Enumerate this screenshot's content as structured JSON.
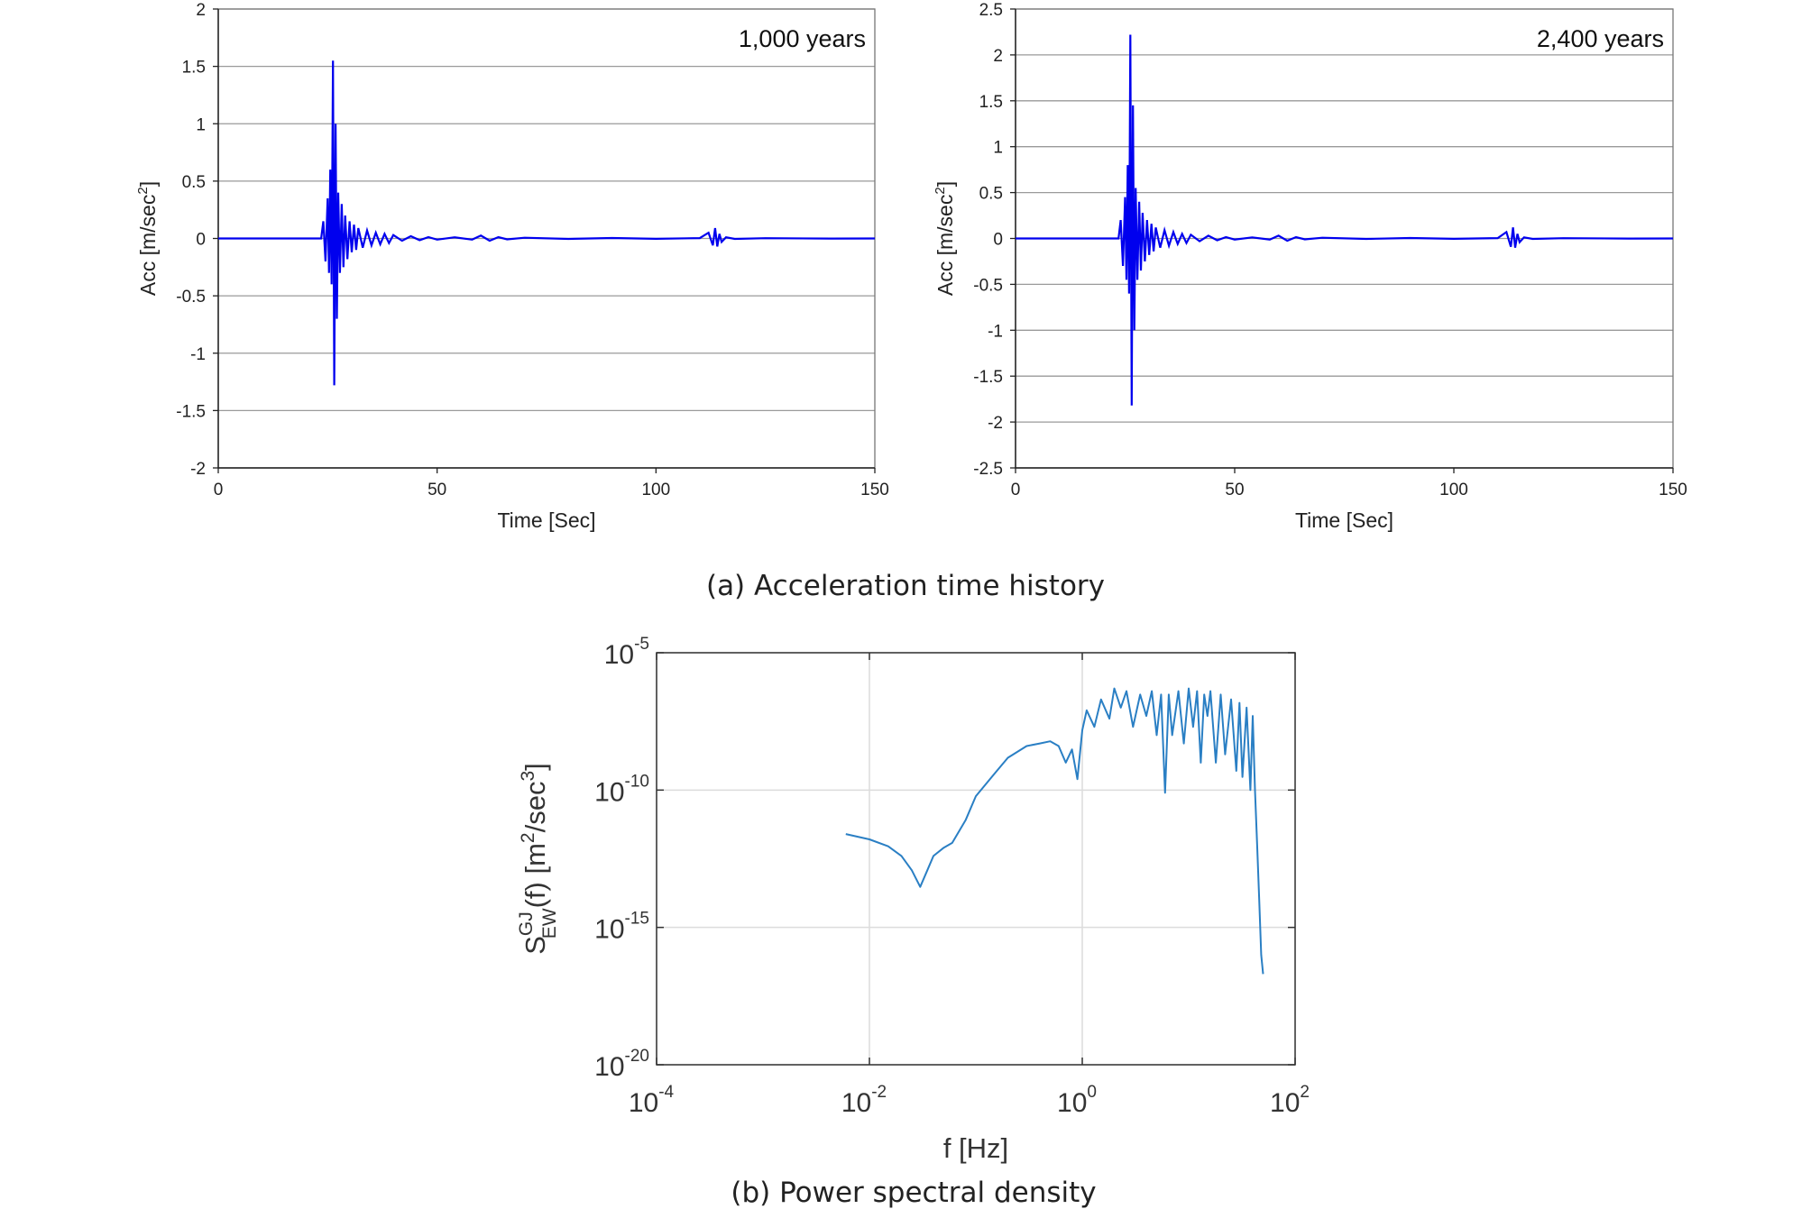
{
  "chart_data": [
    {
      "type": "line",
      "annotation": "1,000 years",
      "xlabel": "Time [Sec]",
      "ylabel": "Acc [m/sec",
      "ylabel_sup": "2",
      "ylabel_end": "]",
      "xlim": [
        0,
        150
      ],
      "ylim": [
        -2,
        2
      ],
      "xticks": [
        0,
        50,
        100,
        150
      ],
      "yticks": [
        -2,
        -1.5,
        -1,
        -0.5,
        0,
        0.5,
        1,
        1.5,
        2
      ],
      "grid": "horizontal",
      "color": "#0000ee",
      "series": [
        {
          "x": [
            0,
            23.5,
            24,
            24.5,
            25,
            25.3,
            25.6,
            25.9,
            26.2,
            26.5,
            26.8,
            27.1,
            27.4,
            27.8,
            28.2,
            28.6,
            29,
            29.5,
            30,
            30.5,
            31,
            31.5,
            32,
            33,
            34,
            35,
            36,
            37,
            38,
            39,
            40,
            42,
            44,
            46,
            48,
            50,
            54,
            58,
            60,
            62,
            64,
            66,
            70,
            80,
            90,
            100,
            110,
            112,
            113,
            113.5,
            114,
            114.5,
            115,
            116,
            118,
            125,
            140,
            150
          ],
          "y": [
            0,
            0,
            0.15,
            -0.2,
            0.35,
            -0.3,
            0.6,
            -0.4,
            1.55,
            -1.28,
            1.0,
            -0.7,
            0.4,
            -0.3,
            0.3,
            -0.25,
            0.2,
            -0.18,
            0.15,
            -0.12,
            0.12,
            -0.1,
            0.09,
            -0.08,
            0.07,
            -0.06,
            0.05,
            -0.05,
            0.04,
            -0.04,
            0.03,
            -0.02,
            0.02,
            -0.015,
            0.012,
            -0.01,
            0.01,
            -0.01,
            0.025,
            -0.02,
            0.012,
            -0.008,
            0.006,
            -0.004,
            0.004,
            -0.003,
            0.003,
            0.05,
            -0.06,
            0.09,
            -0.07,
            0.04,
            -0.03,
            0.01,
            -0.004,
            0.002,
            -0.001,
            0
          ]
        }
      ]
    },
    {
      "type": "line",
      "annotation": "2,400 years",
      "xlabel": "Time [Sec]",
      "ylabel": "Acc [m/sec",
      "ylabel_sup": "2",
      "ylabel_end": "]",
      "xlim": [
        0,
        150
      ],
      "ylim": [
        -2.5,
        2.5
      ],
      "xticks": [
        0,
        50,
        100,
        150
      ],
      "yticks": [
        -2.5,
        -2,
        -1.5,
        -1,
        -0.5,
        0,
        0.5,
        1,
        1.5,
        2,
        2.5
      ],
      "grid": "horizontal",
      "color": "#0000ee",
      "series": [
        {
          "x": [
            0,
            23.5,
            24,
            24.5,
            25,
            25.3,
            25.6,
            25.9,
            26.2,
            26.5,
            26.8,
            27.1,
            27.4,
            27.8,
            28.2,
            28.6,
            29,
            29.5,
            30,
            30.5,
            31,
            31.5,
            32,
            33,
            34,
            35,
            36,
            37,
            38,
            39,
            40,
            42,
            44,
            46,
            48,
            50,
            54,
            58,
            60,
            62,
            64,
            66,
            70,
            80,
            90,
            100,
            110,
            112,
            113,
            113.5,
            114,
            114.5,
            115,
            116,
            118,
            125,
            140,
            150
          ],
          "y": [
            0,
            0,
            0.2,
            -0.3,
            0.45,
            -0.45,
            0.8,
            -0.6,
            2.22,
            -1.82,
            1.45,
            -1.0,
            0.55,
            -0.45,
            0.4,
            -0.35,
            0.28,
            -0.25,
            0.2,
            -0.18,
            0.16,
            -0.14,
            0.12,
            -0.1,
            0.09,
            -0.08,
            0.07,
            -0.06,
            0.05,
            -0.05,
            0.04,
            -0.03,
            0.03,
            -0.02,
            0.015,
            -0.012,
            0.012,
            -0.012,
            0.03,
            -0.025,
            0.015,
            -0.01,
            0.008,
            -0.005,
            0.005,
            -0.004,
            0.004,
            0.07,
            -0.09,
            0.12,
            -0.1,
            0.05,
            -0.04,
            0.012,
            -0.005,
            0.003,
            -0.001,
            0
          ]
        }
      ]
    },
    {
      "type": "line",
      "xscale": "log",
      "yscale": "log",
      "xlabel": "f [Hz]",
      "ylabel_main": "S",
      "ylabel_sup": "GJ",
      "ylabel_sub": "EW",
      "ylabel_rest": "(f) [m",
      "ylabel_unit_sup1": "2",
      "ylabel_mid": "/sec",
      "ylabel_unit_sup2": "3",
      "ylabel_close": "]",
      "xlim": [
        0.0001,
        100
      ],
      "ylim": [
        1e-20,
        1e-05
      ],
      "xticks": [
        {
          "base": "10",
          "exp": "-4"
        },
        {
          "base": "10",
          "exp": "-2"
        },
        {
          "base": "10",
          "exp": "0"
        },
        {
          "base": "10",
          "exp": "2"
        }
      ],
      "yticks": [
        {
          "base": "10",
          "exp": "-20"
        },
        {
          "base": "10",
          "exp": "-15"
        },
        {
          "base": "10",
          "exp": "-10"
        },
        {
          "base": "10",
          "exp": "-5"
        }
      ],
      "grid": "on",
      "color": "#2a7fc4",
      "series": [
        {
          "x": [
            0.006,
            0.01,
            0.015,
            0.02,
            0.025,
            0.03,
            0.035,
            0.04,
            0.05,
            0.06,
            0.08,
            0.1,
            0.15,
            0.2,
            0.3,
            0.4,
            0.5,
            0.6,
            0.7,
            0.8,
            0.9,
            1.0,
            1.1,
            1.3,
            1.5,
            1.8,
            2.0,
            2.3,
            2.6,
            3.0,
            3.5,
            4.0,
            4.5,
            5.0,
            5.5,
            6.0,
            6.5,
            7.0,
            8.0,
            9.0,
            10,
            11,
            12,
            13,
            14,
            15,
            16,
            18,
            20,
            22,
            25,
            28,
            30,
            32,
            35,
            38,
            40,
            42,
            44,
            46,
            48,
            50
          ],
          "y": [
            2.5e-12,
            1.6e-12,
            9e-13,
            4e-13,
            1.2e-13,
            3e-14,
            1.2e-13,
            4e-13,
            8e-13,
            1.2e-12,
            8e-12,
            6e-11,
            4e-10,
            1.5e-09,
            4e-09,
            5e-09,
            6e-09,
            4e-09,
            1e-09,
            3e-09,
            2.5e-10,
            1.5e-08,
            8e-08,
            2e-08,
            2e-07,
            4e-08,
            5e-07,
            1e-07,
            4e-07,
            2e-08,
            3e-07,
            5e-08,
            4e-07,
            1e-08,
            3e-07,
            8e-11,
            3e-07,
            1e-08,
            4e-07,
            5e-09,
            5e-07,
            2e-08,
            4e-07,
            1e-09,
            3e-07,
            5e-08,
            4e-07,
            1e-09,
            3e-07,
            2e-09,
            2e-07,
            5e-10,
            1.5e-07,
            3e-10,
            1e-07,
            1e-10,
            5e-08,
            1e-10,
            1e-12,
            1e-14,
            1e-16,
            2e-17
          ]
        }
      ]
    }
  ],
  "captions": {
    "a": "(a)  Acceleration time history",
    "b": "(b)  Power spectral density"
  }
}
